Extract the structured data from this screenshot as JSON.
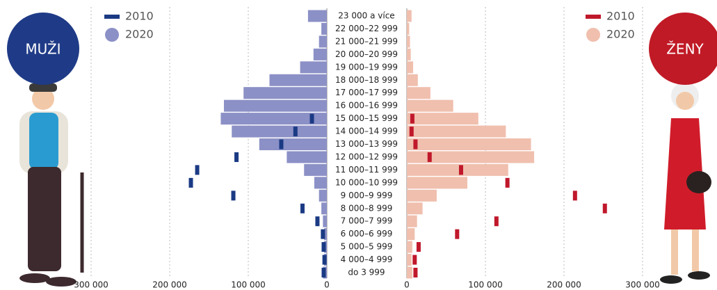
{
  "chart_data": {
    "type": "pyramid",
    "categories": [
      "23 000 a více",
      "22 000–22 999",
      "21 000–21 999",
      "20 000–20 999",
      "19 000–19 999",
      "18 000–18 999",
      "17 000–17 999",
      "16 000–16 999",
      "15 000–15 999",
      "14 000–14 999",
      "13 000–13 999",
      "12 000–12 999",
      "11 000–11 999",
      "10 000–10 999",
      "9 000–9 999",
      "8 000–8 999",
      "7 000–7 999",
      "6 000–6 999",
      "5 000–5 999",
      "4 000–4 999",
      "do 3 999"
    ],
    "xlim": [
      0,
      300000
    ],
    "xticks": [
      {
        "value": 300000,
        "label": "300 000"
      },
      {
        "value": 200000,
        "label": "200 000"
      },
      {
        "value": 100000,
        "label": "100 000"
      },
      0
    ],
    "grid": true,
    "groups": [
      {
        "label": "MUŽI",
        "side": "left",
        "circle_color": "#1f3b87",
        "series": [
          {
            "name": "2010",
            "mark": "tick",
            "color": "#1b3a84",
            "values": [
              null,
              null,
              null,
              null,
              null,
              null,
              null,
              null,
              19000,
              40000,
              58000,
              115000,
              165000,
              173000,
              119000,
              31000,
              12000,
              5000,
              4000,
              3000,
              4000
            ]
          },
          {
            "name": "2020",
            "mark": "bar",
            "color": "#8b90c6",
            "values": [
              24000,
              7000,
              10000,
              17000,
              34000,
              73000,
              106000,
              131000,
              135000,
              121000,
              86000,
              51000,
              29000,
              16000,
              10000,
              7000,
              5000,
              3500,
              3500,
              3500,
              5000
            ]
          }
        ]
      },
      {
        "label": "ŽENY",
        "side": "right",
        "circle_color": "#c01a26",
        "series": [
          {
            "name": "2010",
            "mark": "tick",
            "color": "#c0182b",
            "values": [
              null,
              null,
              null,
              null,
              null,
              null,
              null,
              null,
              7000,
              6000,
              11000,
              29000,
              69000,
              128000,
              214000,
              252000,
              114000,
              64000,
              15000,
              10000,
              11000
            ]
          },
          {
            "name": "2020",
            "mark": "bar",
            "color": "#f0bfae",
            "values": [
              6000,
              3000,
              4000,
              5000,
              8000,
              14000,
              30000,
              59000,
              91000,
              126000,
              158000,
              162000,
              129000,
              77000,
              38000,
              20000,
              13000,
              10000,
              7000,
              6000,
              7000
            ]
          }
        ]
      }
    ]
  }
}
